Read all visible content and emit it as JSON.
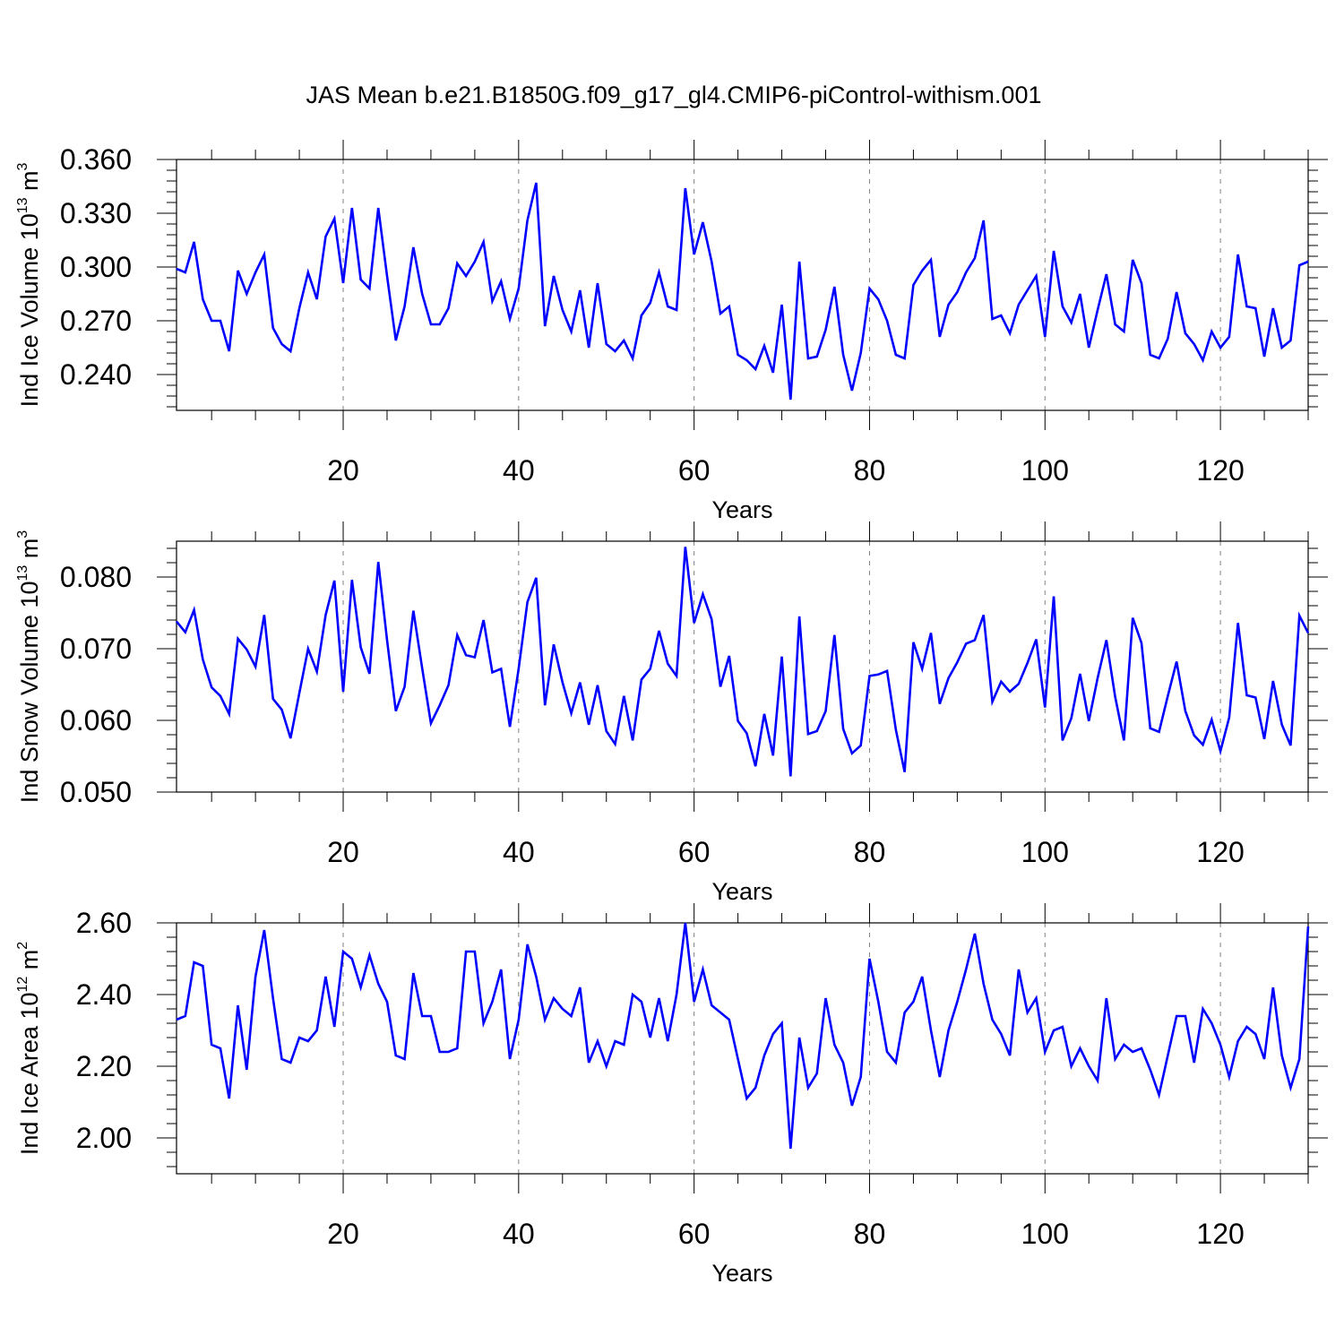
{
  "title": "JAS Mean b.e21.B1850G.f09_g17_gl4.CMIP6-piControl-withism.001",
  "colors": {
    "line": "#0000ff",
    "axes": "#000000",
    "grid": "#808080",
    "background": "#ffffff"
  },
  "chart_data": [
    {
      "type": "line",
      "ylabel": {
        "text": "Ind Ice Volume 10",
        "exp": "13",
        "unit": " m",
        "unit_exp": "3"
      },
      "xlabel": "Years",
      "xlim": [
        1,
        130
      ],
      "ylim": [
        0.22,
        0.36
      ],
      "xticks": [
        20,
        40,
        60,
        80,
        100,
        120
      ],
      "yticks": [
        "0.240",
        "0.270",
        "0.300",
        "0.330",
        "0.360"
      ],
      "grid": "dashed vertical at major x ticks",
      "series": [
        {
          "values": [
            0.299,
            0.297,
            0.314,
            0.282,
            0.27,
            0.27,
            0.253,
            0.298,
            0.285,
            0.297,
            0.307,
            0.266,
            0.257,
            0.253,
            0.277,
            0.297,
            0.282,
            0.317,
            0.327,
            0.291,
            0.333,
            0.293,
            0.288,
            0.333,
            0.295,
            0.259,
            0.278,
            0.311,
            0.285,
            0.268,
            0.268,
            0.277,
            0.302,
            0.295,
            0.303,
            0.314,
            0.281,
            0.292,
            0.271,
            0.288,
            0.326,
            0.347,
            0.267,
            0.295,
            0.276,
            0.264,
            0.287,
            0.255,
            0.291,
            0.257,
            0.253,
            0.259,
            0.249,
            0.273,
            0.28,
            0.297,
            0.278,
            0.276,
            0.344,
            0.307,
            0.325,
            0.303,
            0.274,
            0.278,
            0.251,
            0.248,
            0.243,
            0.256,
            0.241,
            0.279,
            0.226,
            0.303,
            0.249,
            0.25,
            0.265,
            0.289,
            0.251,
            0.231,
            0.252,
            0.288,
            0.282,
            0.27,
            0.251,
            0.249,
            0.29,
            0.298,
            0.304,
            0.261,
            0.279,
            0.286,
            0.297,
            0.305,
            0.326,
            0.271,
            0.273,
            0.263,
            0.279,
            0.287,
            0.295,
            0.261,
            0.309,
            0.278,
            0.269,
            0.285,
            0.255,
            0.276,
            0.296,
            0.268,
            0.264,
            0.304,
            0.291,
            0.251,
            0.249,
            0.26,
            0.286,
            0.263,
            0.257,
            0.248,
            0.264,
            0.255,
            0.261,
            0.307,
            0.278,
            0.277,
            0.25,
            0.277,
            0.255,
            0.259,
            0.301,
            0.303
          ]
        }
      ]
    },
    {
      "type": "line",
      "ylabel": {
        "text": "Ind Snow Volume 10",
        "exp": "13",
        "unit": " m",
        "unit_exp": "3"
      },
      "xlabel": "Years",
      "xlim": [
        1,
        130
      ],
      "ylim": [
        0.05,
        0.085
      ],
      "xticks": [
        20,
        40,
        60,
        80,
        100,
        120
      ],
      "yticks": [
        "0.050",
        "0.060",
        "0.070",
        "0.080"
      ],
      "grid": "dashed vertical at major x ticks",
      "series": [
        {
          "values": [
            0.0738,
            0.0723,
            0.0754,
            0.0685,
            0.0646,
            0.0634,
            0.0609,
            0.0714,
            0.0699,
            0.0675,
            0.0747,
            0.063,
            0.0615,
            0.0575,
            0.0638,
            0.07,
            0.0668,
            0.0747,
            0.0795,
            0.064,
            0.0796,
            0.0702,
            0.0665,
            0.0821,
            0.0712,
            0.0613,
            0.0647,
            0.0753,
            0.0673,
            0.0596,
            0.0621,
            0.0649,
            0.0719,
            0.0691,
            0.0688,
            0.074,
            0.0667,
            0.0672,
            0.0591,
            0.0672,
            0.0765,
            0.0799,
            0.0621,
            0.0706,
            0.0653,
            0.061,
            0.0653,
            0.0594,
            0.0649,
            0.0585,
            0.0567,
            0.0634,
            0.0572,
            0.0657,
            0.0672,
            0.0725,
            0.0679,
            0.0662,
            0.0842,
            0.0736,
            0.0776,
            0.0741,
            0.0647,
            0.069,
            0.0599,
            0.0582,
            0.0536,
            0.0609,
            0.0551,
            0.0689,
            0.0522,
            0.0745,
            0.0581,
            0.0585,
            0.0613,
            0.0719,
            0.0588,
            0.0554,
            0.0565,
            0.0662,
            0.0664,
            0.0669,
            0.0587,
            0.0528,
            0.0709,
            0.0672,
            0.0722,
            0.0623,
            0.0659,
            0.0681,
            0.0707,
            0.0712,
            0.0747,
            0.0626,
            0.0654,
            0.064,
            0.0651,
            0.068,
            0.0713,
            0.0618,
            0.0773,
            0.0572,
            0.0603,
            0.0665,
            0.0599,
            0.0659,
            0.0712,
            0.0633,
            0.0572,
            0.0743,
            0.0708,
            0.0589,
            0.0584,
            0.0634,
            0.0682,
            0.0613,
            0.0579,
            0.0566,
            0.0601,
            0.0557,
            0.0604,
            0.0736,
            0.0635,
            0.0632,
            0.0574,
            0.0655,
            0.0594,
            0.0565,
            0.0746,
            0.0722
          ]
        }
      ]
    },
    {
      "type": "line",
      "ylabel": {
        "text": "Ind Ice Area 10",
        "exp": "12",
        "unit": " m",
        "unit_exp": "2"
      },
      "xlabel": "Years",
      "xlim": [
        1,
        130
      ],
      "ylim": [
        1.9,
        2.6
      ],
      "xticks": [
        20,
        40,
        60,
        80,
        100,
        120
      ],
      "yticks": [
        "2.00",
        "2.20",
        "2.40",
        "2.60"
      ],
      "grid": "dashed vertical at major x ticks",
      "series": [
        {
          "values": [
            2.33,
            2.34,
            2.49,
            2.48,
            2.26,
            2.25,
            2.11,
            2.37,
            2.19,
            2.45,
            2.58,
            2.39,
            2.22,
            2.21,
            2.28,
            2.27,
            2.3,
            2.45,
            2.31,
            2.52,
            2.5,
            2.42,
            2.51,
            2.43,
            2.38,
            2.23,
            2.22,
            2.46,
            2.34,
            2.34,
            2.24,
            2.24,
            2.25,
            2.52,
            2.52,
            2.32,
            2.38,
            2.47,
            2.22,
            2.33,
            2.54,
            2.45,
            2.33,
            2.39,
            2.36,
            2.34,
            2.42,
            2.21,
            2.27,
            2.2,
            2.27,
            2.26,
            2.4,
            2.38,
            2.28,
            2.39,
            2.27,
            2.4,
            2.6,
            2.38,
            2.47,
            2.37,
            2.35,
            2.33,
            2.22,
            2.11,
            2.14,
            2.23,
            2.29,
            2.32,
            1.97,
            2.28,
            2.14,
            2.18,
            2.39,
            2.26,
            2.21,
            2.09,
            2.17,
            2.5,
            2.38,
            2.24,
            2.21,
            2.35,
            2.38,
            2.45,
            2.3,
            2.17,
            2.3,
            2.38,
            2.47,
            2.57,
            2.43,
            2.33,
            2.29,
            2.23,
            2.47,
            2.35,
            2.39,
            2.24,
            2.3,
            2.31,
            2.2,
            2.25,
            2.2,
            2.16,
            2.39,
            2.22,
            2.26,
            2.24,
            2.25,
            2.19,
            2.12,
            2.23,
            2.34,
            2.34,
            2.21,
            2.36,
            2.32,
            2.26,
            2.17,
            2.27,
            2.31,
            2.29,
            2.22,
            2.42,
            2.23,
            2.14,
            2.22,
            2.59
          ]
        }
      ]
    }
  ]
}
